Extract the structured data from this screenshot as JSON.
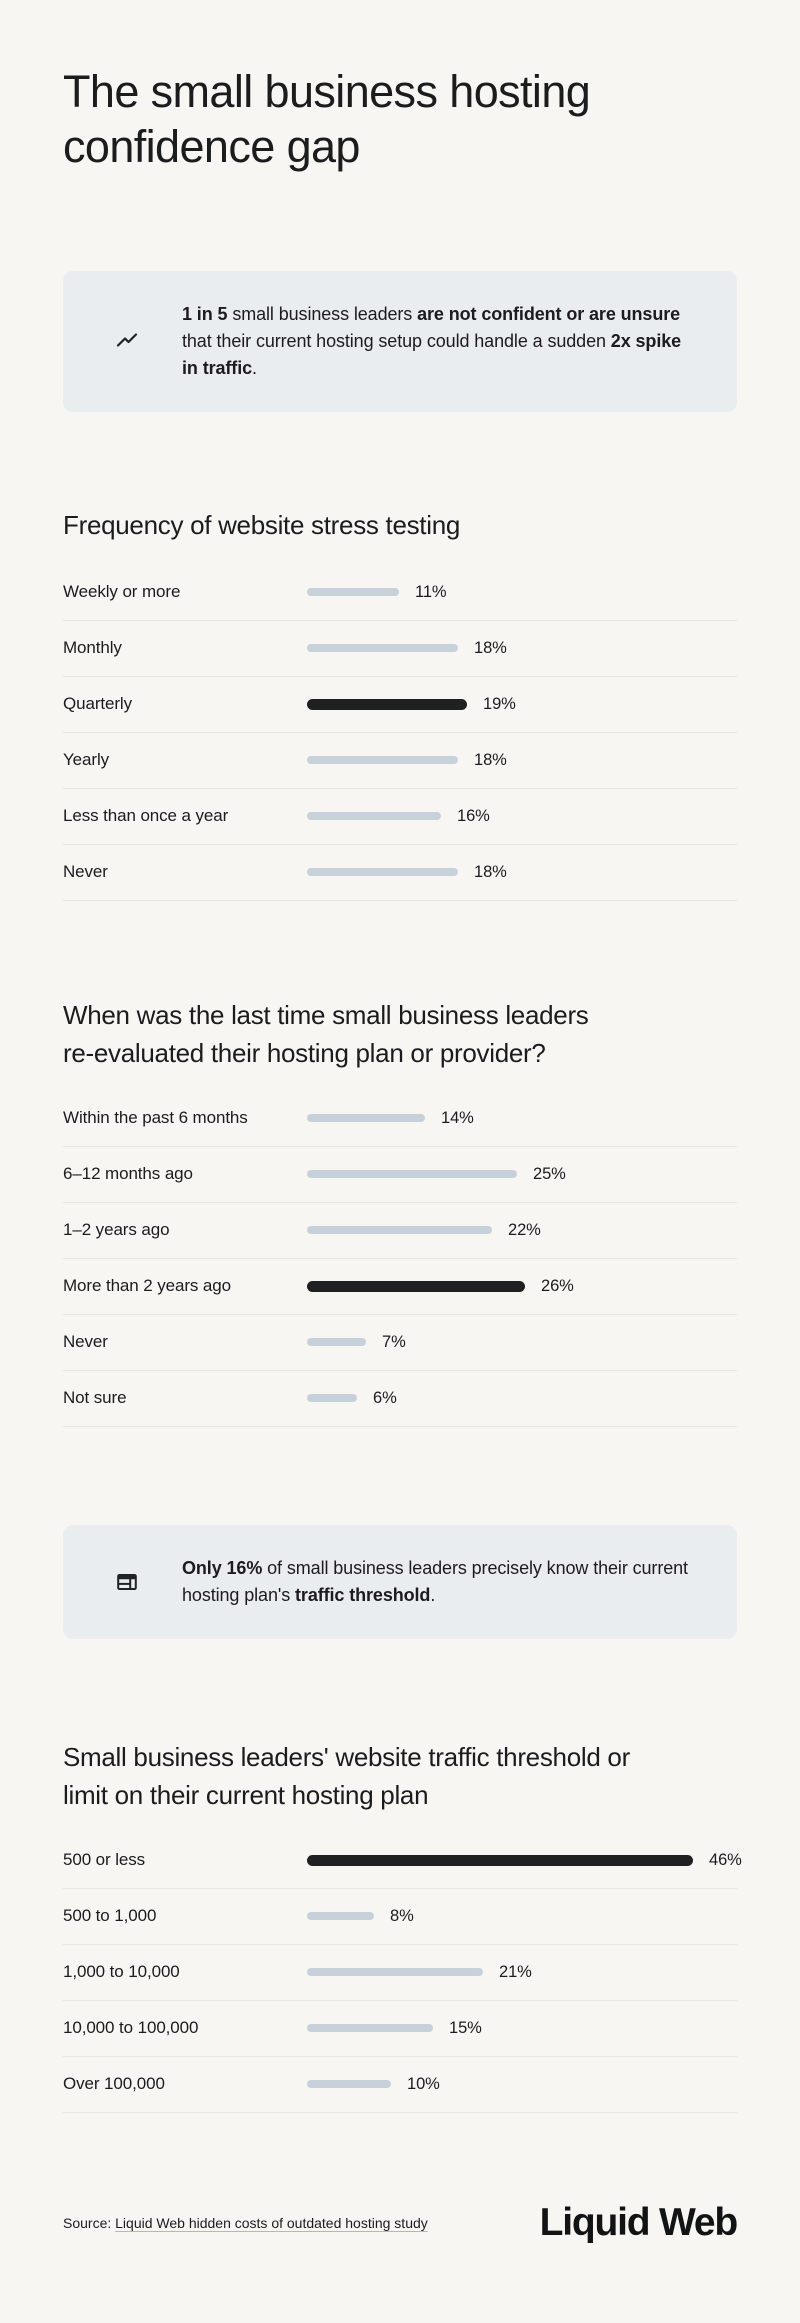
{
  "colors": {
    "page_bg": "#f7f6f2",
    "callout_bg": "#e9edf0",
    "bar_gray": "#c7d1d9",
    "bar_dark": "#1e2021",
    "text": "#1b1c1d",
    "divider": "#e8e6e1"
  },
  "page": {
    "title": "The small business hosting confidence gap",
    "title_lines": [
      "The small business hosting",
      "confidence gap"
    ]
  },
  "callouts": [
    {
      "icon": "trending-up-icon",
      "parts": [
        {
          "t": "1 in 5",
          "b": true
        },
        {
          "t": " small business leaders ",
          "b": false
        },
        {
          "t": "are not confident or are unsure",
          "b": true
        },
        {
          "t": " that their current hosting setup could handle a sudden ",
          "b": false
        },
        {
          "t": "2x spike in traffic",
          "b": true
        },
        {
          "t": ".",
          "b": false
        }
      ]
    },
    {
      "icon": "web-layout-icon",
      "parts": [
        {
          "t": "Only 16%",
          "b": true
        },
        {
          "t": " of small business leaders precisely know their current hosting plan's ",
          "b": false
        },
        {
          "t": "traffic threshold",
          "b": true
        },
        {
          "t": ".",
          "b": false
        }
      ]
    }
  ],
  "chart_data": [
    {
      "type": "bar",
      "orientation": "horizontal",
      "title": "Frequency of website stress testing",
      "title_lines": [
        "Frequency of website stress testing"
      ],
      "categories": [
        "Weekly or more",
        "Monthly",
        "Quarterly",
        "Yearly",
        "Less than once a year",
        "Never"
      ],
      "values": [
        11,
        18,
        19,
        18,
        16,
        18
      ],
      "labels": [
        "11%",
        "18%",
        "19%",
        "18%",
        "16%",
        "18%"
      ],
      "highlight_index": 2,
      "unit": "%",
      "xlim": [
        0,
        50
      ],
      "grid": false,
      "legend": false
    },
    {
      "type": "bar",
      "orientation": "horizontal",
      "title": "When was the last time small business leaders re-evaluated their hosting plan or provider?",
      "title_lines": [
        "When was the last time small business leaders",
        "re-evaluated their hosting plan or provider?"
      ],
      "categories": [
        "Within the past 6 months",
        "6–12 months ago",
        "1–2 years ago",
        "More than 2 years ago",
        "Never",
        "Not sure"
      ],
      "values": [
        14,
        25,
        22,
        26,
        7,
        6
      ],
      "labels": [
        "14%",
        "25%",
        "22%",
        "26%",
        "7%",
        "6%"
      ],
      "highlight_index": 3,
      "unit": "%",
      "xlim": [
        0,
        50
      ],
      "grid": false,
      "legend": false
    },
    {
      "type": "bar",
      "orientation": "horizontal",
      "title": "Small business leaders' website traffic threshold or limit on their current hosting plan",
      "title_lines": [
        "Small business leaders' website traffic threshold or",
        "limit on their current hosting plan"
      ],
      "categories": [
        "500 or less",
        "500 to 1,000",
        "1,000 to 10,000",
        "10,000 to 100,000",
        "Over 100,000"
      ],
      "values": [
        46,
        8,
        21,
        15,
        10
      ],
      "labels": [
        "46%",
        "8%",
        "21%",
        "15%",
        "10%"
      ],
      "highlight_index": 0,
      "unit": "%",
      "xlim": [
        0,
        50
      ],
      "grid": false,
      "legend": false
    }
  ],
  "footer": {
    "source_prefix": "Source: ",
    "source_link": "Liquid Web hidden costs of outdated hosting study",
    "logo": "Liquid Web"
  }
}
